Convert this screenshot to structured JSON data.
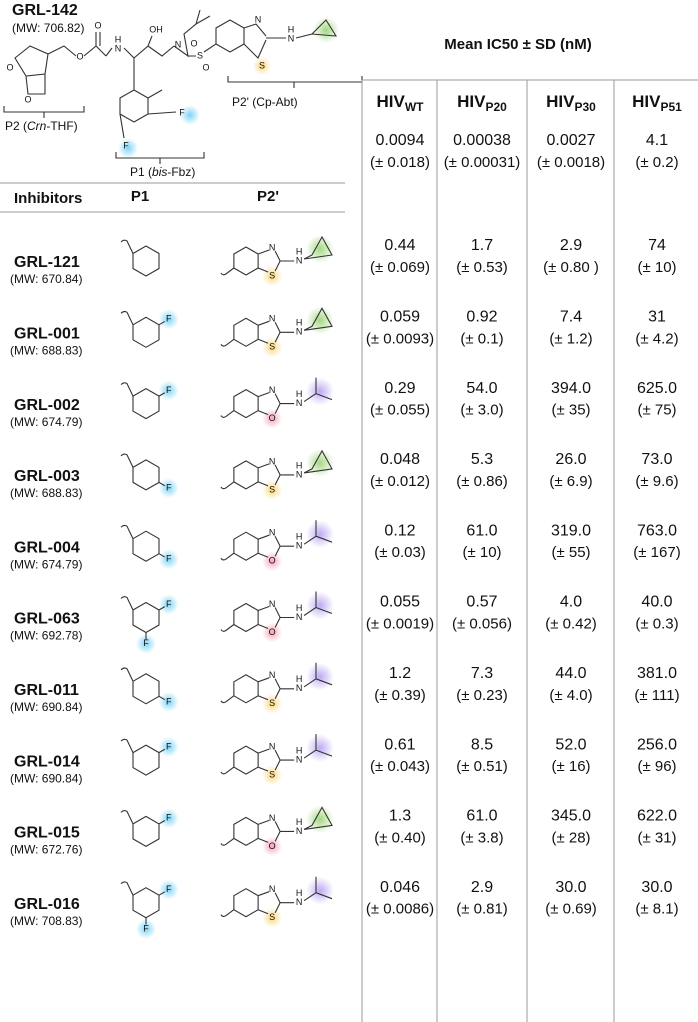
{
  "header": {
    "compound": "GRL-142",
    "mw": "(MW: 706.82)",
    "p2_label": [
      "P2 (",
      "Crn",
      "-THF)"
    ],
    "p1_label": [
      "P1 (",
      "bis",
      "-Fbz)"
    ],
    "p2prime_label": "P2' (Cp-Abt)",
    "atoms": [
      "O",
      "O",
      "O",
      "O",
      "H",
      "N",
      "OH",
      "N",
      "S",
      "O",
      "O",
      "N",
      "S",
      "H",
      "N",
      "F",
      "F"
    ]
  },
  "table": {
    "title": "Mean IC50 ± SD (nM)",
    "columns": [
      [
        "HIV",
        "WT"
      ],
      [
        "HIV",
        "P20"
      ],
      [
        "HIV",
        "P30"
      ],
      [
        "HIV",
        "P51"
      ]
    ],
    "reference": [
      [
        "0.0094",
        "(± 0.018)"
      ],
      [
        "0.00038",
        "(± 0.00031)"
      ],
      [
        "0.0027",
        "(± 0.0018)"
      ],
      [
        "4.1",
        "(± 0.2)"
      ]
    ],
    "headers": [
      "Inhibitors",
      "P1",
      "P2'"
    ],
    "rows": [
      {
        "name": "GRL-121",
        "mw": "(MW: 670.84)",
        "values": [
          [
            "0.44",
            "(± 0.069)"
          ],
          [
            "1.7",
            "(± 0.53)"
          ],
          [
            "2.9",
            "(± 0.80 )"
          ],
          [
            "74",
            "(± 10)"
          ]
        ],
        "p1_atoms": [],
        "p2_atoms": [
          "N",
          "S",
          "H",
          "N"
        ]
      },
      {
        "name": "GRL-001",
        "mw": "(MW: 688.83)",
        "values": [
          [
            "0.059",
            "(± 0.0093)"
          ],
          [
            "0.92",
            "(± 0.1)"
          ],
          [
            "7.4",
            "(± 1.2)"
          ],
          [
            "31",
            "(± 4.2)"
          ]
        ],
        "p1_atoms": [
          "F"
        ],
        "p2_atoms": [
          "N",
          "S",
          "H",
          "N"
        ]
      },
      {
        "name": "GRL-002",
        "mw": "(MW: 674.79)",
        "values": [
          [
            "0.29",
            "(± 0.055)"
          ],
          [
            "54.0",
            "(± 3.0)"
          ],
          [
            "394.0",
            "(± 35)"
          ],
          [
            "625.0",
            "(± 75)"
          ]
        ],
        "p1_atoms": [
          "F"
        ],
        "p2_atoms": [
          "N",
          "O",
          "H",
          "N"
        ]
      },
      {
        "name": "GRL-003",
        "mw": "(MW: 688.83)",
        "values": [
          [
            "0.048",
            "(± 0.012)"
          ],
          [
            "5.3",
            "(± 0.86)"
          ],
          [
            "26.0",
            "(± 6.9)"
          ],
          [
            "73.0",
            "(± 9.6)"
          ]
        ],
        "p1_atoms": [
          "F"
        ],
        "p2_atoms": [
          "N",
          "S",
          "H",
          "N"
        ]
      },
      {
        "name": "GRL-004",
        "mw": "(MW: 674.79)",
        "values": [
          [
            "0.12",
            "(± 0.03)"
          ],
          [
            "61.0",
            "(± 10)"
          ],
          [
            "319.0",
            "(± 55)"
          ],
          [
            "763.0",
            "(± 167)"
          ]
        ],
        "p1_atoms": [
          "F"
        ],
        "p2_atoms": [
          "N",
          "O",
          "H",
          "N"
        ]
      },
      {
        "name": "GRL-063",
        "mw": "(MW: 692.78)",
        "values": [
          [
            "0.055",
            "(± 0.0019)"
          ],
          [
            "0.57",
            "(± 0.056)"
          ],
          [
            "4.0",
            "(± 0.42)"
          ],
          [
            "40.0",
            "(± 0.3)"
          ]
        ],
        "p1_atoms": [
          "F",
          "F"
        ],
        "p2_atoms": [
          "N",
          "O",
          "H",
          "N"
        ]
      },
      {
        "name": "GRL-011",
        "mw": "(MW: 690.84)",
        "values": [
          [
            "1.2",
            "(± 0.39)"
          ],
          [
            "7.3",
            "(± 0.23)"
          ],
          [
            "44.0",
            "(± 4.0)"
          ],
          [
            "381.0",
            "(± 111)"
          ]
        ],
        "p1_atoms": [
          "F"
        ],
        "p2_atoms": [
          "N",
          "S",
          "H",
          "N"
        ]
      },
      {
        "name": "GRL-014",
        "mw": "(MW: 690.84)",
        "values": [
          [
            "0.61",
            "(± 0.043)"
          ],
          [
            "8.5",
            "(± 0.51)"
          ],
          [
            "52.0",
            "(± 16)"
          ],
          [
            "256.0",
            "(± 96)"
          ]
        ],
        "p1_atoms": [
          "F"
        ],
        "p2_atoms": [
          "N",
          "S",
          "H",
          "N"
        ]
      },
      {
        "name": "GRL-015",
        "mw": "(MW: 672.76)",
        "values": [
          [
            "1.3",
            "(± 0.40)"
          ],
          [
            "61.0",
            "(± 3.8)"
          ],
          [
            "345.0",
            "(± 28)"
          ],
          [
            "622.0",
            "(± 31)"
          ]
        ],
        "p1_atoms": [
          "F"
        ],
        "p2_atoms": [
          "N",
          "O",
          "H",
          "N"
        ]
      },
      {
        "name": "GRL-016",
        "mw": "(MW: 708.83)",
        "values": [
          [
            "0.046",
            "(± 0.0086)"
          ],
          [
            "2.9",
            "(± 0.81)"
          ],
          [
            "30.0",
            "(± 0.69)"
          ],
          [
            "30.0",
            "(± 8.1)"
          ]
        ],
        "p1_atoms": [
          "F",
          "F"
        ],
        "p2_atoms": [
          "N",
          "S",
          "H",
          "N"
        ]
      }
    ]
  }
}
